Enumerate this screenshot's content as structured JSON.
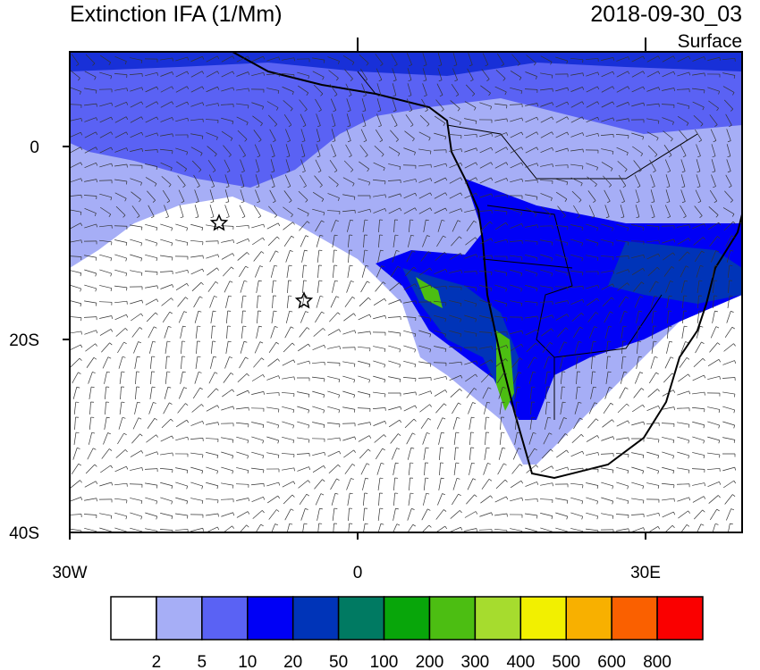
{
  "header": {
    "title": "Extinction IFA (1/Mm)",
    "timestamp": "2018-09-30_03",
    "level": "Surface"
  },
  "axes": {
    "y_labels": [
      "0",
      "20S",
      "40S"
    ],
    "x_labels": [
      "30W",
      "0",
      "30E"
    ]
  },
  "colorbar": {
    "colors": [
      "#ffffff",
      "#a6aef6",
      "#5a62f4",
      "#0000f6",
      "#0034b8",
      "#007a62",
      "#08a60a",
      "#4cbe12",
      "#a6dc2e",
      "#f2f000",
      "#f8b000",
      "#fa6000",
      "#fa0000"
    ],
    "labels": [
      "2",
      "5",
      "10",
      "20",
      "50",
      "100",
      "200",
      "300",
      "400",
      "500",
      "600",
      "800"
    ]
  }
}
